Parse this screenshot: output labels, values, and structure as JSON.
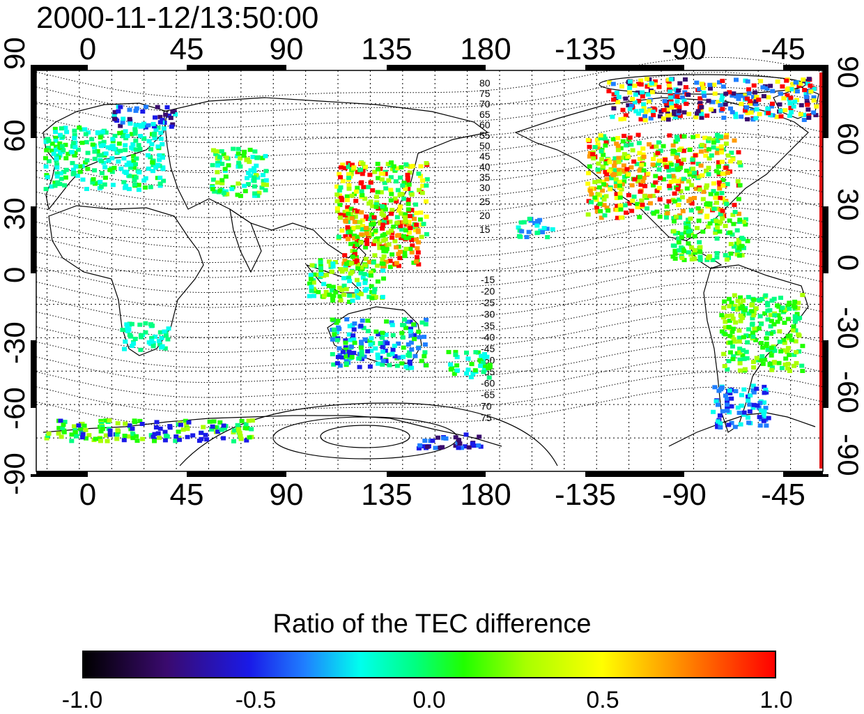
{
  "timestamp": "2000-11-12/13:50:00",
  "map": {
    "top_longitude_labels": [
      "0",
      "45",
      "90",
      "135",
      "180",
      "-135",
      "-90",
      "-45"
    ],
    "bottom_longitude_labels": [
      "0",
      "45",
      "90",
      "135",
      "180",
      "-135",
      "-90",
      "-45"
    ],
    "latitude_labels": [
      "90",
      "60",
      "30",
      "0",
      "-30",
      "-60",
      "-90"
    ],
    "longitude_range": [
      -20,
      345
    ],
    "latitude_range": [
      -90,
      90
    ],
    "grid": true,
    "contour_labels_north": [
      "80",
      "75",
      "70",
      "65",
      "60",
      "55",
      "50",
      "45",
      "40",
      "35",
      "30",
      "25",
      "20",
      "15"
    ],
    "contour_labels_south": [
      "-15",
      "-20",
      "-25",
      "-30",
      "-35",
      "-40",
      "-45",
      "-50",
      "-55",
      "-60",
      "-65",
      "70",
      "75"
    ]
  },
  "colorbar": {
    "title": "Ratio of the TEC difference",
    "ticks": [
      "-1.0",
      "-0.5",
      "0.0",
      "0.5",
      "1.0"
    ],
    "range": [
      -1.0,
      1.0
    ],
    "colors": [
      "#000000",
      "#3a0a6e",
      "#1a1ae8",
      "#1f7fff",
      "#00ffee",
      "#00ff80",
      "#20ff00",
      "#a8ff00",
      "#ffff00",
      "#ff9a00",
      "#ff0000"
    ]
  }
}
